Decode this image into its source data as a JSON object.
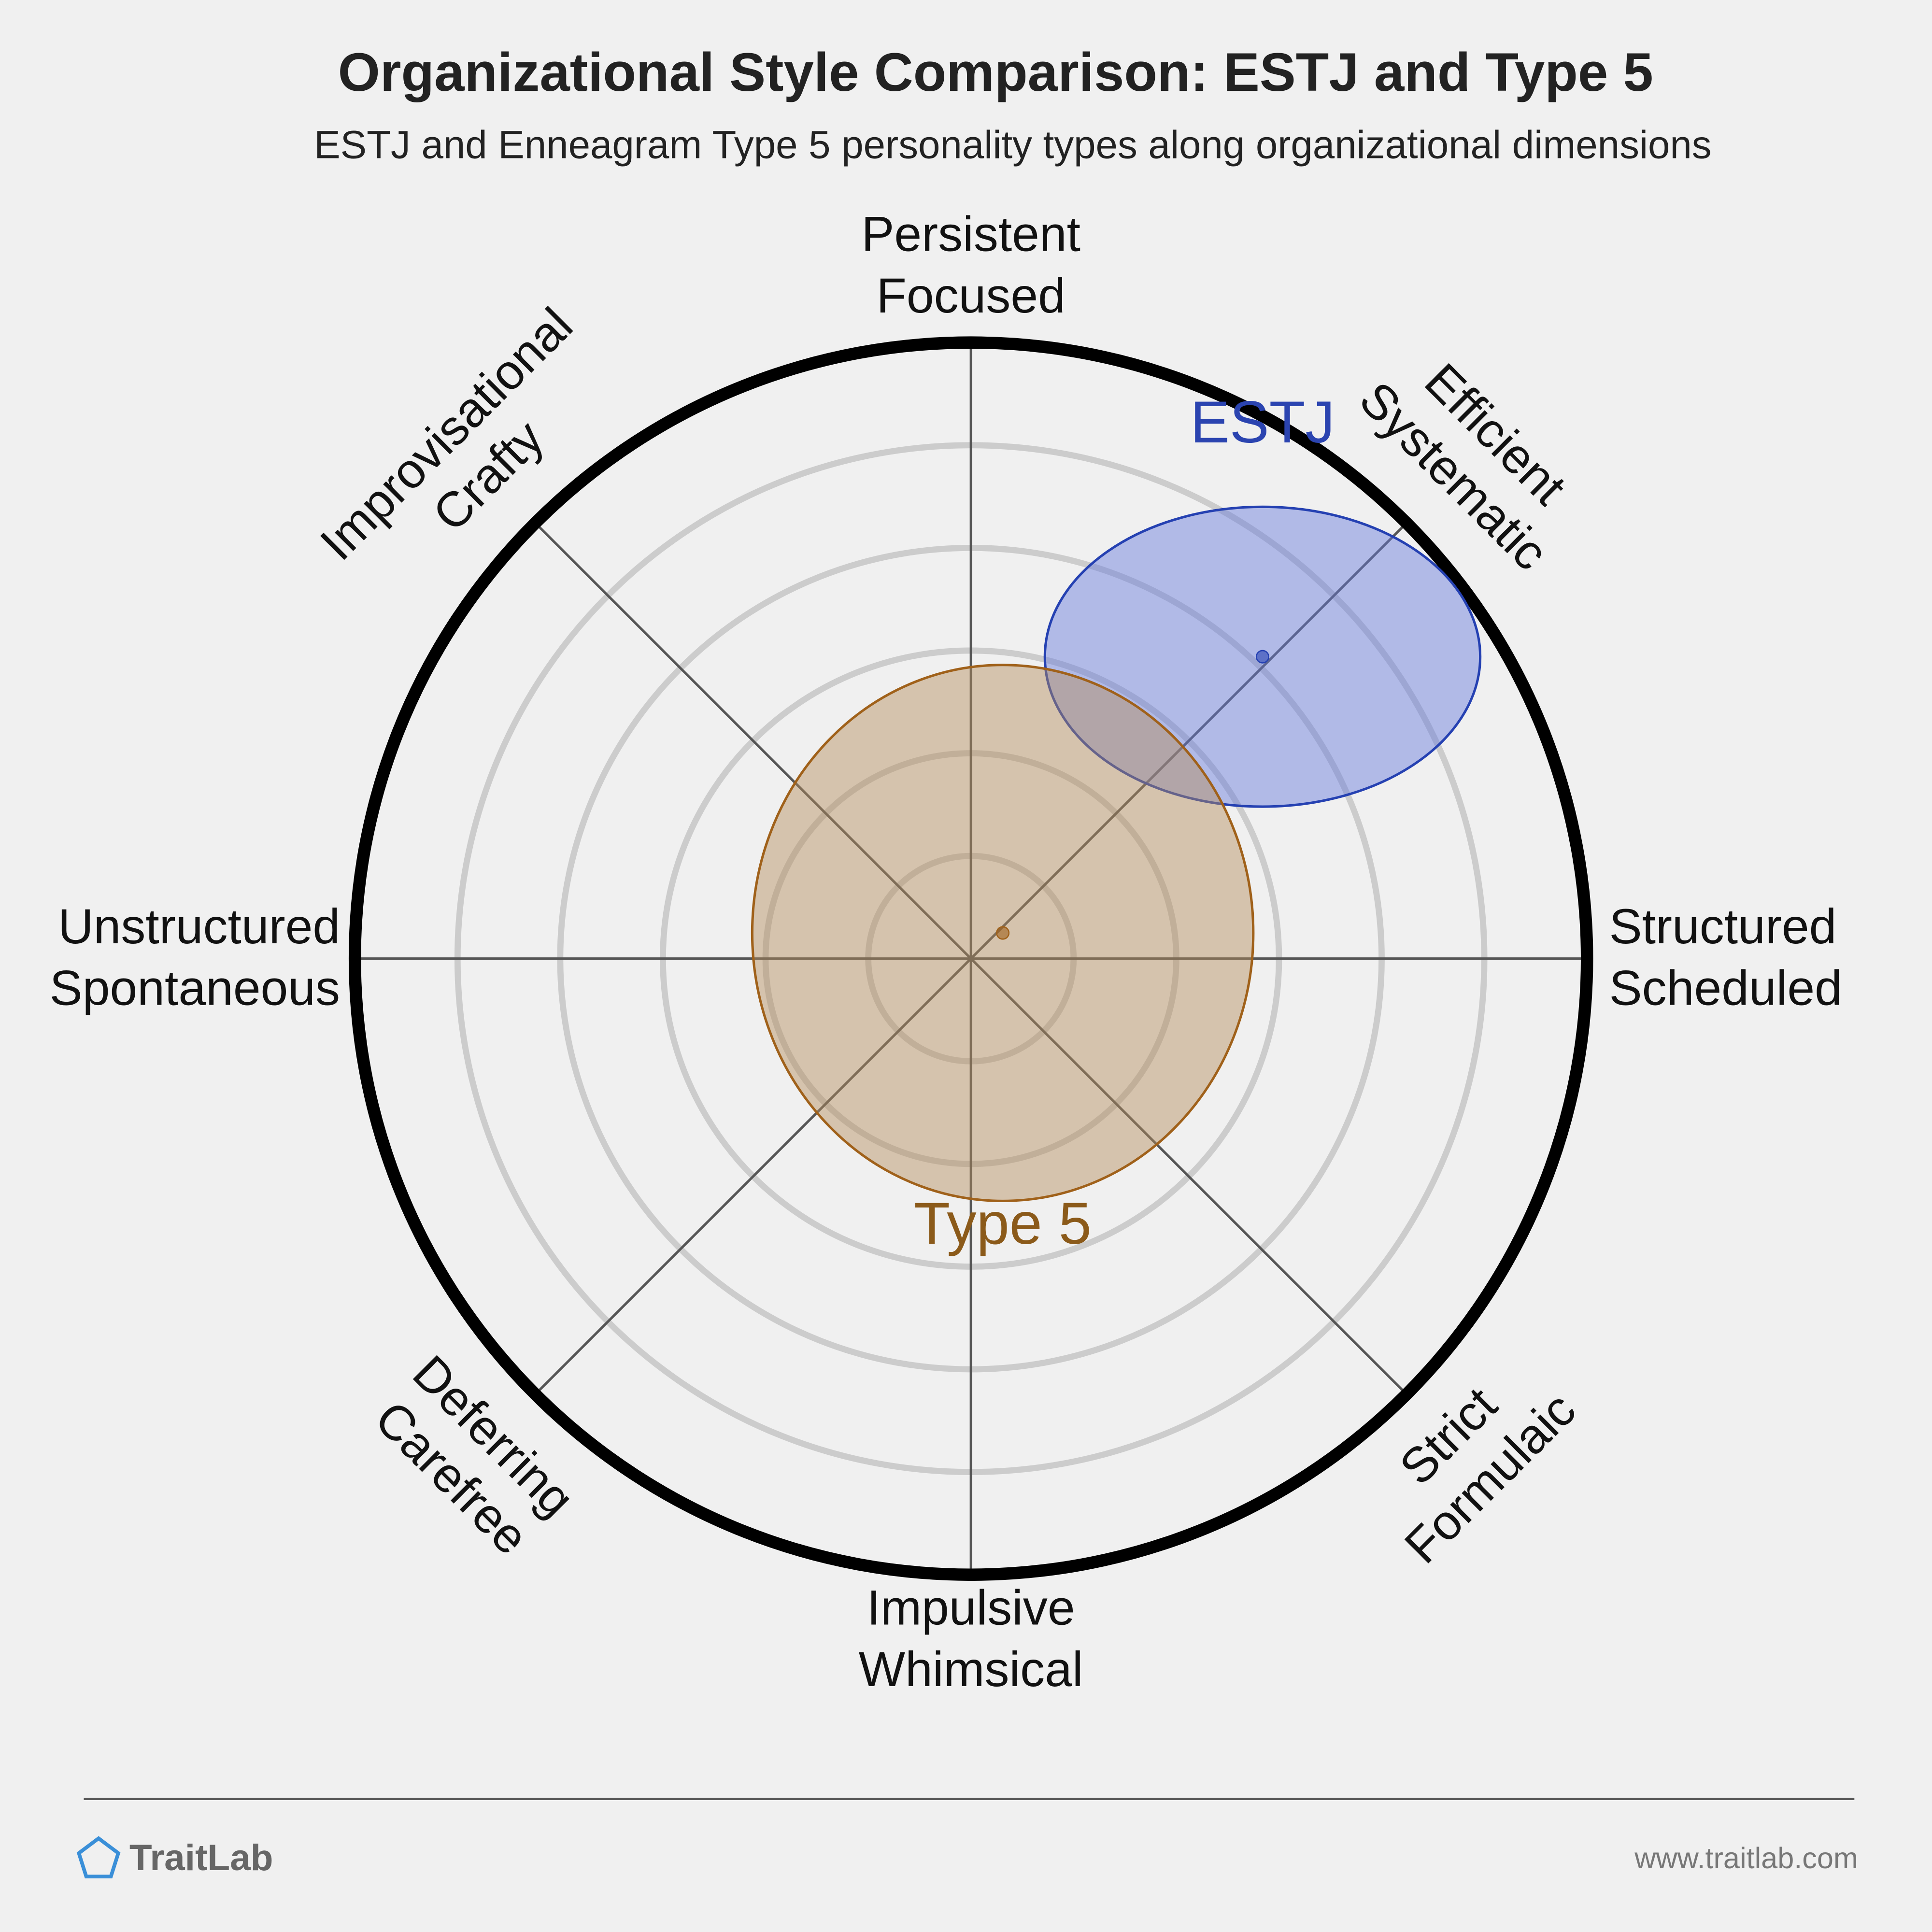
{
  "chart_data": {
    "type": "polar-ellipse",
    "title": "Organizational Style Comparison: ESTJ and Type 5",
    "subtitle": "ESTJ and Enneagram Type 5 personality types along organizational dimensions",
    "axis_labels": [
      [
        "Structured",
        "Scheduled"
      ],
      [
        "Efficient",
        "Systematic"
      ],
      [
        "Persistent",
        "Focused"
      ],
      [
        "Improvisational",
        "Crafty"
      ],
      [
        "Unstructured",
        "Spontaneous"
      ],
      [
        "Deferring",
        "Carefree"
      ],
      [
        "Impulsive",
        "Whimsical"
      ],
      [
        "Strict",
        "Formulaic"
      ]
    ],
    "rlim": [
      0,
      6
    ],
    "rticks": [
      1,
      2,
      3,
      4,
      5
    ],
    "series": [
      {
        "name": "ESTJ",
        "color": "#2541b2",
        "fill": "#6478dc",
        "label_color": "#2b44b0",
        "x": 2.84,
        "y": 2.94,
        "rx": 2.12,
        "ry": 1.46
      },
      {
        "name": "Type 5",
        "color": "#a0611a",
        "fill": "#b48c5a",
        "label_color": "#8b5a1a",
        "x": 0.31,
        "y": 0.25,
        "rx": 2.44,
        "ry": 2.61
      }
    ]
  },
  "footer": {
    "brand": "TraitLab",
    "url": "www.traitlab.com"
  }
}
